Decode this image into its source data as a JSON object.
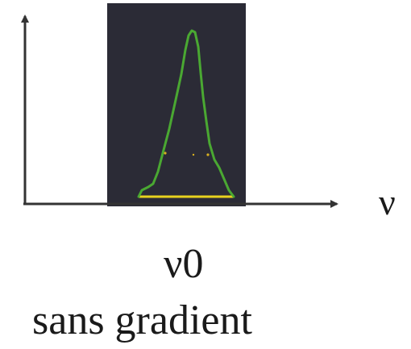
{
  "axis": {
    "x_label": "ν",
    "axis_color": "#333333"
  },
  "spectrum": {
    "background_color": "#2b2b36",
    "curve_color": "#4aa832",
    "baseline_color": "#e8d21e",
    "marker_color": "#d8b020"
  },
  "labels": {
    "center_frequency": "ν0",
    "caption": "sans gradient"
  }
}
